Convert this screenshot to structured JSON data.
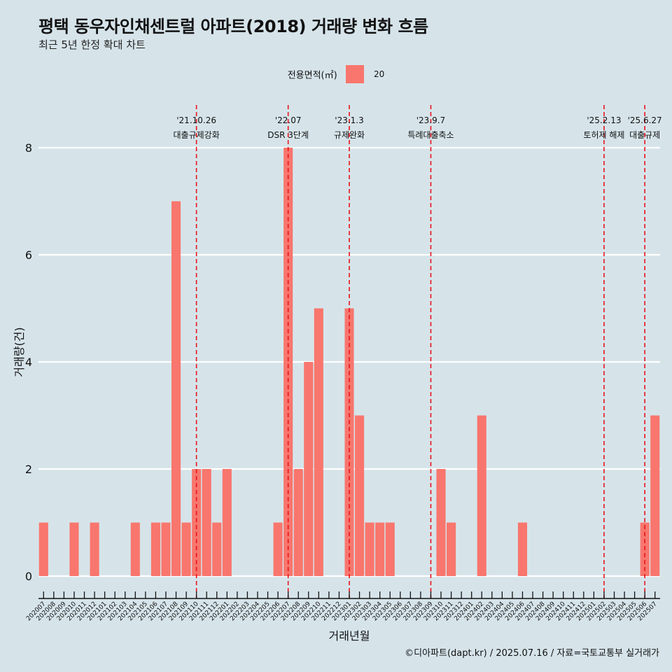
{
  "title": "평택 동우자인채센트럴 아파트(2018) 거래량 변화 흐름",
  "subtitle": "최근 5년 한정 확대 차트",
  "legend": {
    "title": "전용면적(㎡)",
    "items": [
      "20"
    ]
  },
  "caption": "©디아파트(dapt.kr) / 2025.07.16 / 자료=국토교통부 실거래가",
  "colors": {
    "bar": "#f8766d",
    "event_line": "#e8141c",
    "background": "#d6e4ea",
    "grid": "#ffffff"
  },
  "chart_data": {
    "type": "bar",
    "xlabel": "거래년월",
    "ylabel": "거래량(건)",
    "ylim": [
      0,
      8
    ],
    "yticks": [
      0,
      2,
      4,
      6,
      8
    ],
    "grid": true,
    "legend_position": "top",
    "categories": [
      "202007",
      "202008",
      "202009",
      "202010",
      "202011",
      "202012",
      "202101",
      "202102",
      "202103",
      "202104",
      "202105",
      "202106",
      "202107",
      "202108",
      "202109",
      "202110",
      "202111",
      "202112",
      "202201",
      "202202",
      "202203",
      "202204",
      "202205",
      "202206",
      "202207",
      "202208",
      "202209",
      "202210",
      "202211",
      "202212",
      "202301",
      "202302",
      "202303",
      "202304",
      "202305",
      "202306",
      "202307",
      "202308",
      "202309",
      "202310",
      "202311",
      "202312",
      "202401",
      "202402",
      "202403",
      "202404",
      "202405",
      "202406",
      "202407",
      "202408",
      "202409",
      "202410",
      "202411",
      "202412",
      "202501",
      "202502",
      "202503",
      "202504",
      "202505",
      "202506",
      "202507"
    ],
    "series": [
      {
        "name": "20",
        "values": [
          1,
          0,
          0,
          1,
          0,
          1,
          0,
          0,
          0,
          1,
          0,
          1,
          1,
          7,
          1,
          2,
          2,
          1,
          2,
          0,
          0,
          0,
          0,
          1,
          8,
          2,
          4,
          5,
          0,
          0,
          5,
          3,
          1,
          1,
          1,
          0,
          0,
          0,
          0,
          2,
          1,
          0,
          0,
          3,
          0,
          0,
          0,
          1,
          0,
          0,
          0,
          0,
          0,
          0,
          0,
          0,
          0,
          0,
          0,
          1,
          3
        ]
      }
    ],
    "events": [
      {
        "date": "'21.10.26",
        "label": "대출규제강화",
        "category": "202110"
      },
      {
        "date": "'22.07",
        "label": "DSR 3단계",
        "category": "202207"
      },
      {
        "date": "'23.1.3",
        "label": "규제완화",
        "category": "202301"
      },
      {
        "date": "'23.9.7",
        "label": "특례대출축소",
        "category": "202309"
      },
      {
        "date": "'25.2.13",
        "label": "토허제 해제",
        "category": "202502"
      },
      {
        "date": "'25.6.27",
        "label": "대출규제",
        "category": "202506"
      }
    ]
  }
}
